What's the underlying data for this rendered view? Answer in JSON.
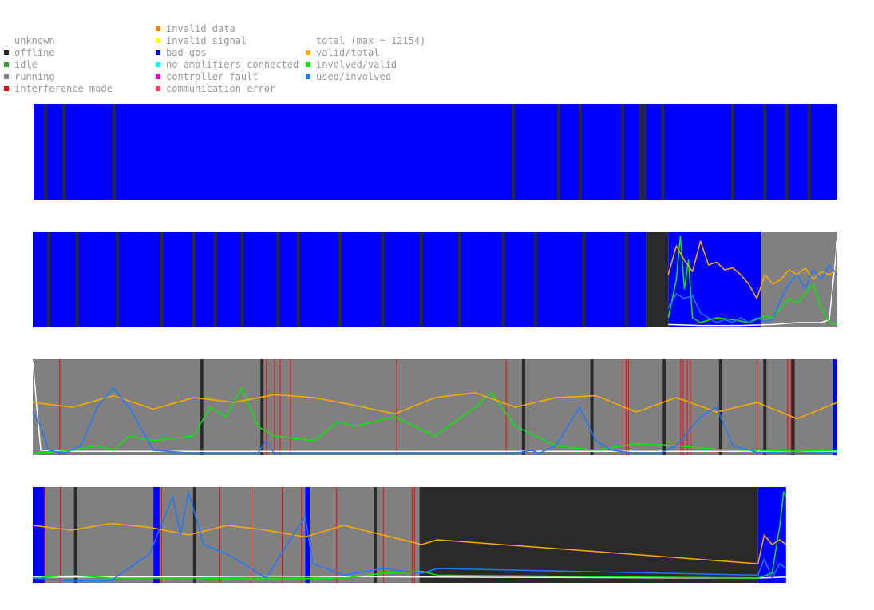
{
  "legend": {
    "col1": [
      {
        "label": "unknown",
        "color": "none"
      },
      {
        "label": "offline",
        "color": "#202020"
      },
      {
        "label": "idle",
        "color": "#30a030"
      },
      {
        "label": "running",
        "color": "#808080"
      },
      {
        "label": "interference mode",
        "color": "#ff0000"
      }
    ],
    "col2": [
      {
        "label": "invalid data",
        "color": "#ff7f00"
      },
      {
        "label": "invalid signal",
        "color": "#ffff00"
      },
      {
        "label": "bad gps",
        "color": "#0000ff"
      },
      {
        "label": "no amplifiers connected",
        "color": "#00ffff"
      },
      {
        "label": "controller fault",
        "color": "#ff00cc"
      },
      {
        "label": "communication error",
        "color": "#ff4060"
      }
    ],
    "col3": [
      {
        "label": "total (max = 12154)",
        "color": "none"
      },
      {
        "label": "valid/total",
        "color": "#ffaa00"
      },
      {
        "label": "involved/valid",
        "color": "#00ee00"
      },
      {
        "label": "used/involved",
        "color": "#1e78ff"
      }
    ]
  },
  "colors": {
    "offline": "#2a2a2a",
    "running": "#808080",
    "bad_gps": "#0000ff",
    "interference": "#ff0000",
    "total": "#ffffff",
    "valid_total": "#ffaa00",
    "involved_valid": "#00ee00",
    "used_involved": "#1e78ff"
  },
  "chart_data": {
    "type": "area",
    "total_max": 12154,
    "ylim": [
      0,
      1
    ],
    "x_unit": "fraction of row",
    "rows": [
      {
        "states": [
          {
            "s": 0,
            "e": 1,
            "state": "bad_gps"
          }
        ],
        "offline_marks": [
          0.015,
          0.038,
          0.1,
          0.597,
          0.653,
          0.68,
          0.733,
          0.755,
          0.76,
          0.783,
          0.87,
          0.91,
          0.937,
          0.965
        ]
      },
      {
        "states": [
          {
            "s": 0,
            "e": 0.762,
            "state": "bad_gps"
          },
          {
            "s": 0.762,
            "e": 0.79,
            "state": "offline"
          },
          {
            "s": 0.79,
            "e": 0.905,
            "state": "bad_gps"
          },
          {
            "s": 0.905,
            "e": 1,
            "state": "running"
          }
        ],
        "offline_marks": [
          0.02,
          0.055,
          0.105,
          0.16,
          0.2,
          0.227,
          0.26,
          0.305,
          0.33,
          0.382,
          0.435,
          0.483,
          0.53,
          0.585,
          0.625,
          0.685,
          0.738
        ],
        "series": {
          "valid_total": {
            "x": [
              0.79,
              0.8,
              0.81,
              0.82,
              0.83,
              0.84,
              0.85,
              0.86,
              0.87,
              0.88,
              0.89,
              0.9,
              0.91,
              0.92,
              0.93,
              0.94,
              0.95,
              0.96,
              0.97,
              0.98,
              0.99,
              1.0
            ],
            "y": [
              0.55,
              0.85,
              0.7,
              0.58,
              0.9,
              0.65,
              0.68,
              0.6,
              0.62,
              0.55,
              0.45,
              0.3,
              0.55,
              0.45,
              0.5,
              0.6,
              0.55,
              0.62,
              0.5,
              0.58,
              0.55,
              0.6
            ]
          },
          "involved_valid": {
            "x": [
              0.79,
              0.8,
              0.805,
              0.81,
              0.815,
              0.82,
              0.83,
              0.85,
              0.87,
              0.89,
              0.91,
              0.92,
              0.93,
              0.94,
              0.95,
              0.96,
              0.97,
              0.98,
              0.99,
              1.0
            ],
            "y": [
              0.1,
              0.5,
              0.95,
              0.4,
              0.7,
              0.1,
              0.05,
              0.1,
              0.08,
              0.05,
              0.12,
              0.1,
              0.2,
              0.3,
              0.25,
              0.35,
              0.45,
              0.2,
              0.05,
              0.03
            ]
          },
          "used_involved": {
            "x": [
              0.79,
              0.8,
              0.81,
              0.82,
              0.83,
              0.84,
              0.85,
              0.86,
              0.87,
              0.88,
              0.89,
              0.9,
              0.91,
              0.92,
              0.93,
              0.94,
              0.95,
              0.96,
              0.97,
              0.98,
              0.99,
              1.0
            ],
            "y": [
              0.2,
              0.35,
              0.3,
              0.33,
              0.15,
              0.1,
              0.05,
              0.08,
              0.05,
              0.1,
              0.05,
              0.1,
              0.06,
              0.08,
              0.3,
              0.45,
              0.55,
              0.4,
              0.6,
              0.5,
              0.65,
              0.55
            ]
          },
          "total": {
            "x": [
              0.79,
              0.83,
              0.88,
              0.92,
              0.95,
              0.98,
              0.99,
              1.0
            ],
            "y": [
              0.03,
              0.02,
              0.02,
              0.03,
              0.05,
              0.05,
              0.08,
              0.9
            ]
          }
        }
      },
      {
        "states": [
          {
            "s": 0,
            "e": 0.995,
            "state": "running"
          },
          {
            "s": 0.995,
            "e": 1,
            "state": "bad_gps"
          }
        ],
        "offline_marks": [
          0.21,
          0.285,
          0.61,
          0.695,
          0.785,
          0.855,
          0.91,
          0.945
        ],
        "interference_marks": [
          0.033,
          0.29,
          0.3,
          0.307,
          0.32,
          0.452,
          0.588,
          0.733,
          0.737,
          0.74,
          0.805,
          0.808,
          0.813,
          0.817,
          0.9,
          0.938,
          0.942
        ],
        "series": {
          "valid_total": {
            "x": [
              0,
              0.05,
              0.1,
              0.15,
              0.2,
              0.25,
              0.3,
              0.35,
              0.4,
              0.45,
              0.5,
              0.55,
              0.6,
              0.65,
              0.7,
              0.75,
              0.8,
              0.85,
              0.9,
              0.95,
              1.0
            ],
            "y": [
              0.55,
              0.5,
              0.62,
              0.48,
              0.6,
              0.55,
              0.63,
              0.6,
              0.52,
              0.43,
              0.6,
              0.65,
              0.5,
              0.6,
              0.62,
              0.45,
              0.6,
              0.45,
              0.55,
              0.38,
              0.55
            ]
          },
          "involved_valid": {
            "x": [
              0,
              0.05,
              0.08,
              0.1,
              0.12,
              0.15,
              0.2,
              0.22,
              0.24,
              0.26,
              0.28,
              0.3,
              0.35,
              0.38,
              0.4,
              0.45,
              0.5,
              0.55,
              0.57,
              0.6,
              0.65,
              0.7,
              0.75,
              0.8,
              0.85,
              0.9,
              0.95,
              1.0
            ],
            "y": [
              0.02,
              0.05,
              0.1,
              0.05,
              0.2,
              0.15,
              0.2,
              0.5,
              0.4,
              0.7,
              0.3,
              0.2,
              0.15,
              0.35,
              0.3,
              0.4,
              0.2,
              0.5,
              0.65,
              0.3,
              0.1,
              0.05,
              0.12,
              0.1,
              0.06,
              0.05,
              0.04,
              0.05
            ]
          },
          "used_involved": {
            "x": [
              0,
              0.01,
              0.02,
              0.04,
              0.06,
              0.08,
              0.1,
              0.12,
              0.15,
              0.2,
              0.28,
              0.29,
              0.3,
              0.4,
              0.5,
              0.6,
              0.62,
              0.63,
              0.65,
              0.68,
              0.7,
              0.72,
              0.75,
              0.78,
              0.8,
              0.83,
              0.85,
              0.87,
              0.9,
              0.95,
              1.0
            ],
            "y": [
              0.45,
              0.3,
              0.05,
              0.02,
              0.1,
              0.5,
              0.7,
              0.5,
              0.05,
              0.02,
              0.02,
              0.15,
              0.02,
              0.02,
              0.02,
              0.02,
              0.05,
              0.02,
              0.1,
              0.5,
              0.15,
              0.05,
              0.02,
              0.02,
              0.1,
              0.4,
              0.5,
              0.1,
              0.03,
              0.02,
              0.03
            ]
          },
          "total": {
            "x": [
              0,
              0.005,
              0.01,
              0.05,
              0.2,
              0.5,
              0.8,
              1.0
            ],
            "y": [
              0.98,
              0.5,
              0.05,
              0.04,
              0.04,
              0.04,
              0.04,
              0.04
            ]
          }
        }
      },
      {
        "states": [
          {
            "s": 0,
            "e": 0.015,
            "state": "bad_gps"
          },
          {
            "s": 0.015,
            "e": 0.155,
            "state": "running"
          },
          {
            "s": 0.155,
            "e": 0.163,
            "state": "bad_gps"
          },
          {
            "s": 0.163,
            "e": 0.35,
            "state": "running"
          },
          {
            "s": 0.35,
            "e": 0.356,
            "state": "bad_gps"
          },
          {
            "s": 0.356,
            "e": 0.497,
            "state": "running"
          },
          {
            "s": 0.497,
            "e": 0.932,
            "state": "offline"
          },
          {
            "s": 0.932,
            "e": 0.968,
            "state": "bad_gps"
          }
        ],
        "offline_marks": [
          0.055,
          0.208,
          0.44
        ],
        "interference_marks": [
          0.015,
          0.035,
          0.165,
          0.24,
          0.28,
          0.32,
          0.345,
          0.39,
          0.45,
          0.487,
          0.49
        ],
        "series": {
          "valid_total": {
            "x": [
              0,
              0.05,
              0.1,
              0.15,
              0.2,
              0.25,
              0.3,
              0.35,
              0.4,
              0.45,
              0.5,
              0.52,
              0.932,
              0.94,
              0.95,
              0.96,
              0.968
            ],
            "y": [
              0.6,
              0.55,
              0.62,
              0.58,
              0.5,
              0.6,
              0.55,
              0.48,
              0.6,
              0.5,
              0.4,
              0.45,
              0.2,
              0.5,
              0.4,
              0.45,
              0.4
            ]
          },
          "involved_valid": {
            "x": [
              0,
              0.05,
              0.1,
              0.2,
              0.3,
              0.4,
              0.45,
              0.5,
              0.52,
              0.932,
              0.95,
              0.96,
              0.965,
              0.968
            ],
            "y": [
              0.05,
              0.08,
              0.05,
              0.05,
              0.04,
              0.05,
              0.1,
              0.12,
              0.08,
              0.05,
              0.1,
              0.6,
              0.95,
              0.9
            ]
          },
          "used_involved": {
            "x": [
              0,
              0.05,
              0.1,
              0.15,
              0.18,
              0.19,
              0.2,
              0.22,
              0.25,
              0.3,
              0.35,
              0.36,
              0.4,
              0.45,
              0.5,
              0.52,
              0.932,
              0.94,
              0.95,
              0.96,
              0.968
            ],
            "y": [
              0.05,
              0.02,
              0.02,
              0.3,
              0.9,
              0.5,
              0.95,
              0.4,
              0.3,
              0.05,
              0.7,
              0.2,
              0.08,
              0.15,
              0.1,
              0.15,
              0.08,
              0.25,
              0.05,
              0.2,
              0.15
            ]
          },
          "total": {
            "x": [
              0,
              0.1,
              0.3,
              0.52,
              0.932,
              0.968
            ],
            "y": [
              0.06,
              0.06,
              0.07,
              0.06,
              0.05,
              0.06
            ]
          }
        }
      }
    ]
  }
}
